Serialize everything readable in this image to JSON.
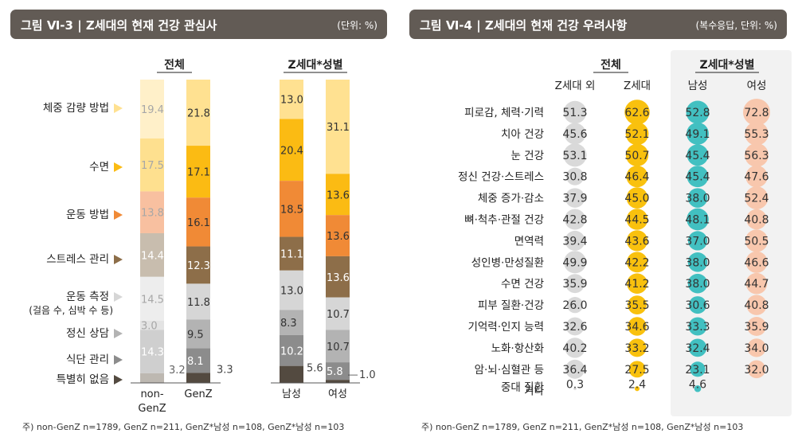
{
  "left": {
    "title": "그림 Ⅵ-3 | Z세대의 현재 건강 관심사",
    "unit": "(단위: %)",
    "group_total": "전체",
    "group_gender": "Z세대*성별",
    "columns": [
      "non-GenZ",
      "GenZ",
      "남성",
      "여성"
    ],
    "categories": [
      "체중 감량 방법",
      "수면",
      "운동 방법",
      "스트레스 관리",
      "운동 측정 (걸음 수, 심박 수 등)",
      "정신 상담",
      "식단 관리",
      "특별히 없음"
    ],
    "category_lines": [
      [
        "체중 감량 방법"
      ],
      [
        "수면"
      ],
      [
        "운동 방법"
      ],
      [
        "스트레스 관리"
      ],
      [
        "운동 측정",
        "(걸음 수, 심박 수 등)"
      ],
      [
        "정신 상담"
      ],
      [
        "식단 관리"
      ],
      [
        "특별히 없음"
      ]
    ],
    "colors": [
      "#ffe191",
      "#fbbb13",
      "#f08a36",
      "#8d6e49",
      "#d6d6d6",
      "#b3b3b3",
      "#8c8c8c",
      "#534a40"
    ],
    "light_colors": [
      "#fff0c9",
      "#fee08f",
      "#f8c0a0",
      "#c8bdae",
      "#ededed",
      "#e3e3e3",
      "#cfcfcf",
      "#bdb8b1"
    ],
    "note": "주) non-GenZ n=1789, GenZ n=211, GenZ*남성 n=108, GenZ*남성 n=103"
  },
  "right": {
    "title": "그림 Ⅵ-4 | Z세대의 현재 건강 우려사항",
    "unit": "(복수응답, 단위: %)",
    "group_total": "전체",
    "group_gender": "Z세대*성별",
    "columns": [
      "Z세대 외",
      "Z세대",
      "남성",
      "여성"
    ],
    "col_colors": [
      "#d9d9d9",
      "#f9c10e",
      "#42c0c1",
      "#f8c7ad"
    ],
    "note": "주) non-GenZ n=1789, GenZ n=211,  GenZ*남성 n=108, GenZ*남성 n=103"
  },
  "chart_data": [
    {
      "type": "bar",
      "stacked": true,
      "title": "Z세대의 현재 건강 관심사",
      "unit": "%",
      "categories": [
        "non-GenZ",
        "GenZ",
        "남성",
        "여성"
      ],
      "series": [
        {
          "name": "체중 감량 방법",
          "values": [
            19.4,
            21.8,
            13.0,
            31.1
          ]
        },
        {
          "name": "수면",
          "values": [
            17.5,
            17.1,
            20.4,
            13.6
          ]
        },
        {
          "name": "운동 방법",
          "values": [
            13.8,
            16.1,
            18.5,
            13.6
          ]
        },
        {
          "name": "스트레스 관리",
          "values": [
            14.4,
            12.3,
            11.1,
            13.6
          ]
        },
        {
          "name": "운동 측정 (걸음 수, 심박 수 등)",
          "values": [
            14.5,
            11.8,
            13.0,
            10.7
          ]
        },
        {
          "name": "정신 상담",
          "values": [
            3.0,
            9.5,
            8.3,
            10.7
          ]
        },
        {
          "name": "식단 관리",
          "values": [
            14.3,
            8.1,
            10.2,
            5.8
          ]
        },
        {
          "name": "특별히 없음",
          "values": [
            3.2,
            3.3,
            5.6,
            1.0
          ]
        }
      ]
    },
    {
      "type": "scatter",
      "title": "Z세대의 현재 건강 우려사항",
      "unit": "%",
      "categories": [
        "피로감, 체력·기력",
        "치아 건강",
        "눈 건강",
        "정신 건강·스트레스",
        "체중 증가·감소",
        "뼈·척추·관절 건강",
        "면역력",
        "성인병·만성질환",
        "수면 건강",
        "피부 질환·건강",
        "기억력·인지 능력",
        "노화·항산화",
        "암·뇌·심혈관 등 중대 질환",
        "기타"
      ],
      "category_lines": [
        [
          "피로감, 체력·기력"
        ],
        [
          "치아 건강"
        ],
        [
          "눈 건강"
        ],
        [
          "정신 건강·스트레스"
        ],
        [
          "체중 증가·감소"
        ],
        [
          "뼈·척추·관절 건강"
        ],
        [
          "면역력"
        ],
        [
          "성인병·만성질환"
        ],
        [
          "수면 건강"
        ],
        [
          "피부 질환·건강"
        ],
        [
          "기억력·인지 능력"
        ],
        [
          "노화·항산화"
        ],
        [
          "암·뇌·심혈관 등",
          "중대 질환"
        ],
        [
          "기타"
        ]
      ],
      "series": [
        {
          "name": "Z세대 외",
          "values": [
            51.3,
            45.6,
            53.1,
            30.8,
            37.9,
            42.8,
            39.4,
            49.9,
            35.9,
            26.0,
            32.6,
            40.2,
            36.4,
            0.3
          ]
        },
        {
          "name": "Z세대",
          "values": [
            62.6,
            52.1,
            50.7,
            46.4,
            45.0,
            44.5,
            43.6,
            42.2,
            41.2,
            35.5,
            34.6,
            33.2,
            27.5,
            2.4
          ]
        },
        {
          "name": "남성",
          "values": [
            52.8,
            49.1,
            45.4,
            45.4,
            38.0,
            48.1,
            37.0,
            38.0,
            38.0,
            30.6,
            33.3,
            32.4,
            23.1,
            4.6
          ]
        },
        {
          "name": "여성",
          "values": [
            72.8,
            55.3,
            56.3,
            47.6,
            52.4,
            40.8,
            50.5,
            46.6,
            44.7,
            40.8,
            35.9,
            34.0,
            32.0,
            null
          ]
        }
      ]
    }
  ]
}
